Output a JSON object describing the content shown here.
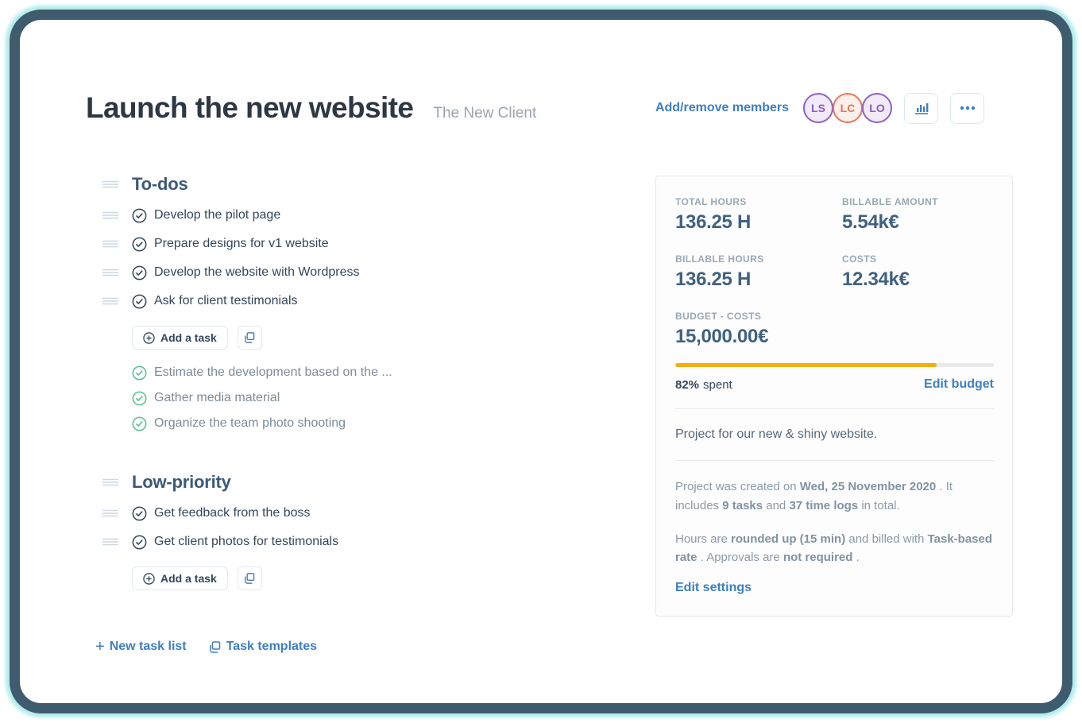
{
  "page": {
    "title": "Launch the new website",
    "client": "The New Client"
  },
  "header": {
    "members_link": "Add/remove members",
    "avatars": [
      {
        "initials": "LS",
        "border": "#9061c2",
        "bg": "#f1eaf9",
        "color": "#8b5db8"
      },
      {
        "initials": "LC",
        "border": "#e8755b",
        "bg": "#fdefe9",
        "color": "#e8755b"
      },
      {
        "initials": "LO",
        "border": "#9061c2",
        "bg": "#f1eaf9",
        "color": "#8b5db8"
      }
    ],
    "chart_button_icon": "bar-chart-icon",
    "more_button_icon": "ellipsis-icon"
  },
  "task_lists": [
    {
      "title": "To-dos",
      "open_tasks": [
        "Develop the pilot page",
        "Prepare designs for v1 website",
        "Develop the website with Wordpress",
        "Ask for client testimonials"
      ],
      "add_task_label": "Add a task",
      "completed_tasks": [
        "Estimate the development based on the ...",
        "Gather media material",
        "Organize the team photo shooting"
      ]
    },
    {
      "title": "Low-priority",
      "open_tasks": [
        "Get feedback from the boss",
        "Get client photos for testimonials"
      ],
      "add_task_label": "Add a task",
      "completed_tasks": []
    }
  ],
  "footer_links": {
    "new_task_list": "New task list",
    "task_templates": "Task templates"
  },
  "stats_panel": {
    "stats": [
      {
        "label": "TOTAL HOURS",
        "value": "136.25 H"
      },
      {
        "label": "BILLABLE AMOUNT",
        "value": "5.54k€"
      },
      {
        "label": "BILLABLE HOURS",
        "value": "136.25 H"
      },
      {
        "label": "COSTS",
        "value": "12.34k€"
      }
    ],
    "budget": {
      "label": "BUDGET - COSTS",
      "value": "15,000.00€",
      "percent_spent": 82,
      "percent_label": "82%",
      "spent_word": "spent",
      "edit_link": "Edit budget",
      "bar_color": "#f2af13",
      "track_color": "#e9e9e9"
    },
    "description": "Project for our new & shiny website.",
    "meta_paragraphs": [
      [
        {
          "t": "Project was created on "
        },
        {
          "t": "Wed, 25 November 2020",
          "b": true
        },
        {
          "t": " . It includes "
        },
        {
          "t": "9 tasks",
          "b": true
        },
        {
          "t": " and "
        },
        {
          "t": "37 time logs",
          "b": true
        },
        {
          "t": " in total."
        }
      ],
      [
        {
          "t": "Hours are "
        },
        {
          "t": "rounded up (15 min)",
          "b": true
        },
        {
          "t": " and billed with "
        },
        {
          "t": "Task-based rate",
          "b": true
        },
        {
          "t": " . Approvals are "
        },
        {
          "t": "not required",
          "b": true
        },
        {
          "t": " ."
        }
      ]
    ],
    "edit_settings": "Edit settings"
  },
  "colors": {
    "frame_border": "#3f5c6e",
    "frame_glow": "#84e0df",
    "heading_dark": "#2d3844",
    "section_blue": "#3c5a77",
    "task_text": "#33475b",
    "done_green": "#53c38b",
    "link_blue": "#3e7fc1",
    "stat_value_blue": "#3f6181",
    "muted_gray": "#8b99a8",
    "progress_yellow": "#f2af13"
  }
}
